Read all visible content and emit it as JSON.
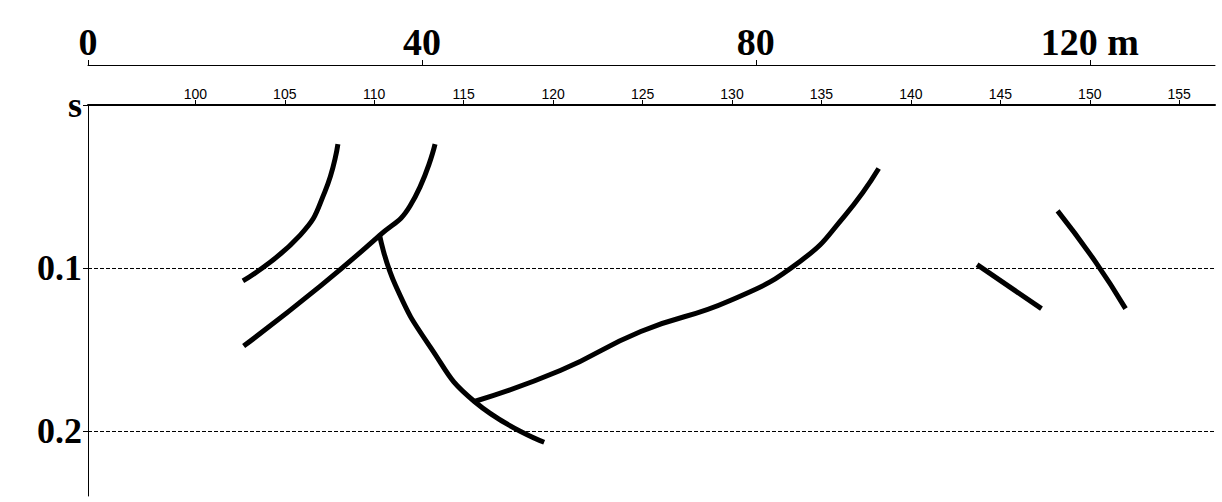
{
  "chart_data": {
    "type": "line",
    "xlim": [
      94,
      157
    ],
    "xticks": [
      100,
      105,
      110,
      115,
      120,
      125,
      130,
      135,
      140,
      145,
      150,
      155
    ],
    "x2lim": [
      0,
      135
    ],
    "x2ticks": [
      0,
      40,
      80,
      {
        "value": 120,
        "label": "120 m"
      }
    ],
    "ylim": [
      0,
      0.24
    ],
    "yticks": [
      {
        "value": 0,
        "label": "s"
      },
      0.1,
      0.2
    ],
    "grid": true,
    "series": [
      {
        "color": "#000000",
        "x": [
          107.97,
          107.25,
          105.85,
          102.66
        ],
        "values": [
          0.024,
          0.053,
          0.08,
          0.108
        ]
      },
      {
        "color": "#000000",
        "x": [
          113.4,
          112.0,
          110.3,
          107.0,
          102.7
        ],
        "values": [
          0.024,
          0.062,
          0.08,
          0.111,
          0.148
        ]
      },
      {
        "color": "#000000",
        "x": [
          110.3,
          111.2,
          113.1,
          115.6,
          119.5
        ],
        "values": [
          0.08,
          0.111,
          0.148,
          0.182,
          0.207
        ]
      },
      {
        "color": "#000000",
        "x": [
          115.6,
          120.4,
          124.9,
          129.9,
          133.8,
          136.3,
          138.2
        ],
        "values": [
          0.182,
          0.163,
          0.139,
          0.12,
          0.096,
          0.068,
          0.039
        ]
      },
      {
        "color": "#000000",
        "x": [
          143.7,
          147.3
        ],
        "values": [
          0.098,
          0.125
        ]
      },
      {
        "color": "#000000",
        "x": [
          148.2,
          150.3,
          152.0
        ],
        "values": [
          0.065,
          0.096,
          0.125
        ]
      }
    ]
  }
}
